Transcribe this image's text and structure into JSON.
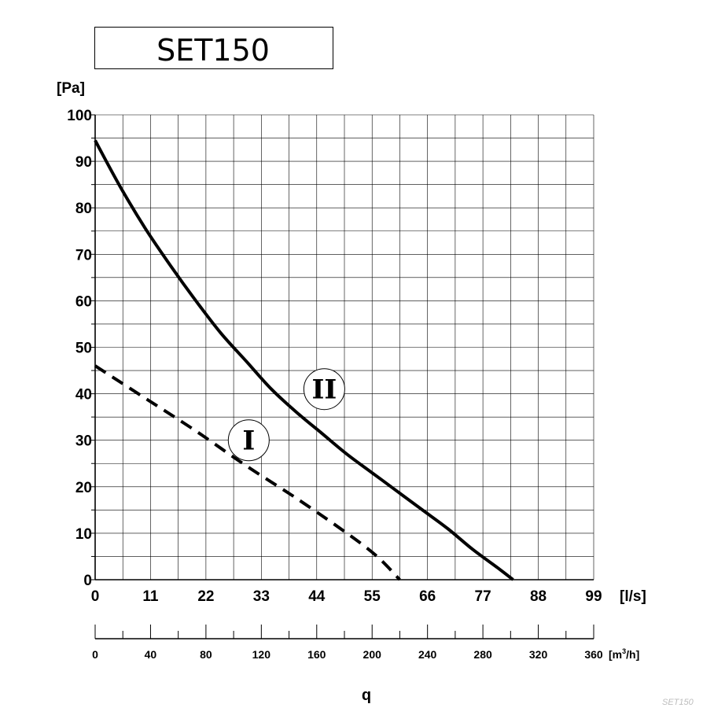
{
  "chart_data": {
    "type": "line",
    "title": "SET150",
    "ylabel": "[Pa]",
    "xlabel_top": "[l/s]",
    "xlabel_bottom": "[m3/h]",
    "xlabel_bottom_base": "[m",
    "xlabel_bottom_sup": "3",
    "xlabel_bottom_tail": "/h]",
    "axis_quantity_label": "q",
    "ylim": [
      0,
      100
    ],
    "xlim": [
      0,
      99
    ],
    "y_ticks": [
      0,
      10,
      20,
      30,
      40,
      50,
      60,
      70,
      80,
      90,
      100
    ],
    "x_ticks_ls": [
      0,
      11,
      22,
      33,
      44,
      55,
      66,
      77,
      88,
      99
    ],
    "x_ticks_m3h": [
      0,
      40,
      80,
      120,
      160,
      200,
      240,
      280,
      320,
      360
    ],
    "grid": true,
    "series": [
      {
        "name": "I",
        "style": "dashed",
        "x": [
          0,
          10,
          20,
          30,
          40,
          50,
          56,
          60.5
        ],
        "y": [
          46,
          39,
          32,
          24.5,
          17.5,
          10,
          5,
          0
        ]
      },
      {
        "name": "II",
        "style": "solid",
        "x": [
          0,
          5,
          10,
          15,
          20,
          25,
          30,
          35,
          40,
          45,
          50,
          55,
          60,
          65,
          70,
          75,
          80,
          83
        ],
        "y": [
          94.5,
          84.5,
          75.5,
          67.5,
          60,
          53,
          47,
          41,
          36,
          31.5,
          27,
          23,
          19,
          15,
          11,
          6.5,
          2.5,
          0
        ]
      }
    ],
    "annotations": [
      {
        "label": "I",
        "x": 30.5,
        "y": 30
      },
      {
        "label": "II",
        "x": 45.5,
        "y": 41
      }
    ]
  },
  "watermark": "SET150"
}
